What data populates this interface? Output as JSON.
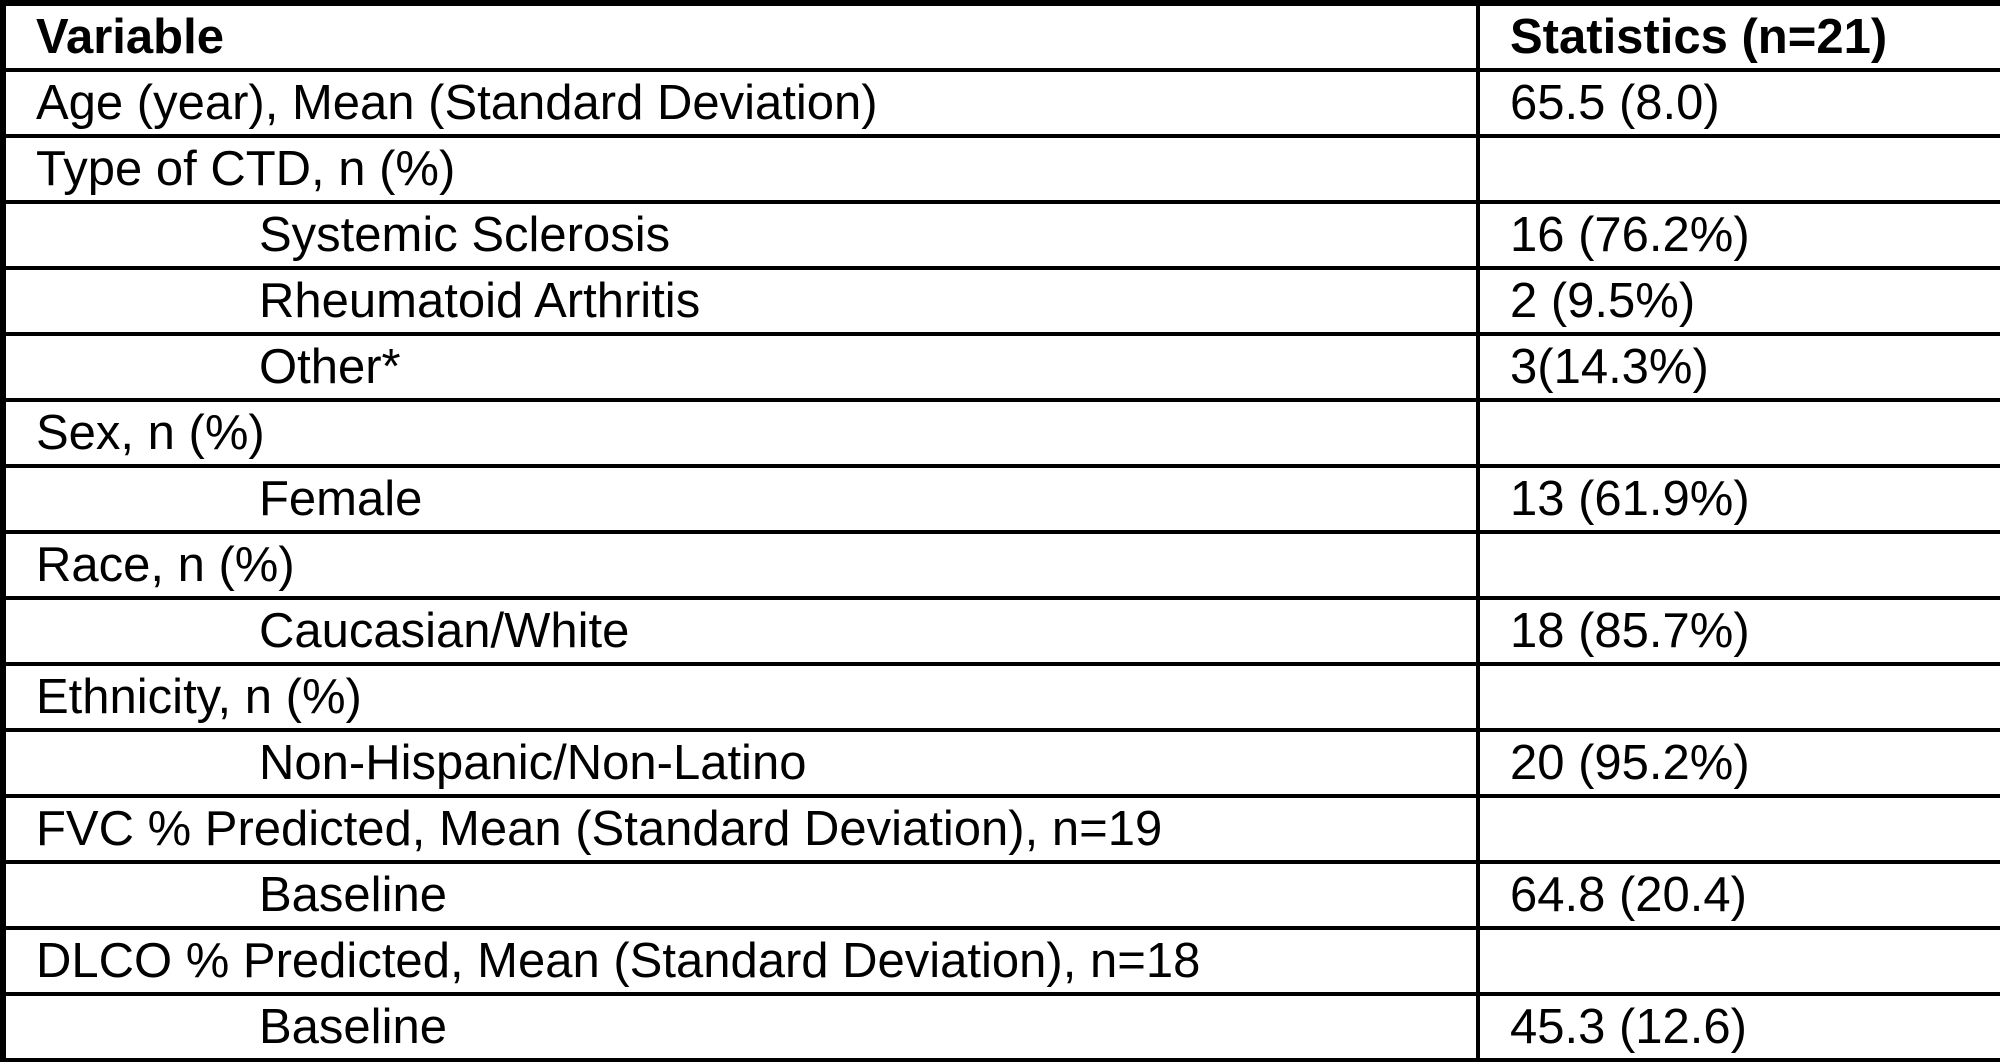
{
  "table": {
    "columns": [
      {
        "label": "Variable"
      },
      {
        "label": "Statistics (n=21)"
      }
    ],
    "rows": [
      {
        "label": "Age (year), Mean (Standard Deviation)",
        "value": "65.5 (8.0)",
        "indent": false
      },
      {
        "label": "Type of CTD, n (%)",
        "value": "",
        "indent": false
      },
      {
        "label": "Systemic Sclerosis",
        "value": "16 (76.2%)",
        "indent": true
      },
      {
        "label": "Rheumatoid Arthritis",
        "value": "2 (9.5%)",
        "indent": true
      },
      {
        "label": "Other*",
        "value": "3(14.3%)",
        "indent": true
      },
      {
        "label": "Sex, n (%)",
        "value": "",
        "indent": false
      },
      {
        "label": "Female",
        "value": "13 (61.9%)",
        "indent": true
      },
      {
        "label": "Race, n (%)",
        "value": "",
        "indent": false
      },
      {
        "label": "Caucasian/White",
        "value": "18 (85.7%)",
        "indent": true
      },
      {
        "label": "Ethnicity, n (%)",
        "value": "",
        "indent": false
      },
      {
        "label": "Non-Hispanic/Non-Latino",
        "value": "20 (95.2%)",
        "indent": true
      },
      {
        "label": "FVC % Predicted, Mean (Standard Deviation), n=19",
        "value": "",
        "indent": false
      },
      {
        "label": "Baseline",
        "value": "64.8 (20.4)",
        "indent": true
      },
      {
        "label": "DLCO % Predicted, Mean (Standard Deviation), n=18",
        "value": "",
        "indent": false
      },
      {
        "label": "Baseline",
        "value": "45.3 (12.6)",
        "indent": true
      }
    ],
    "colors": {
      "border": "#000000",
      "background": "#ffffff",
      "text": "#000000"
    }
  }
}
